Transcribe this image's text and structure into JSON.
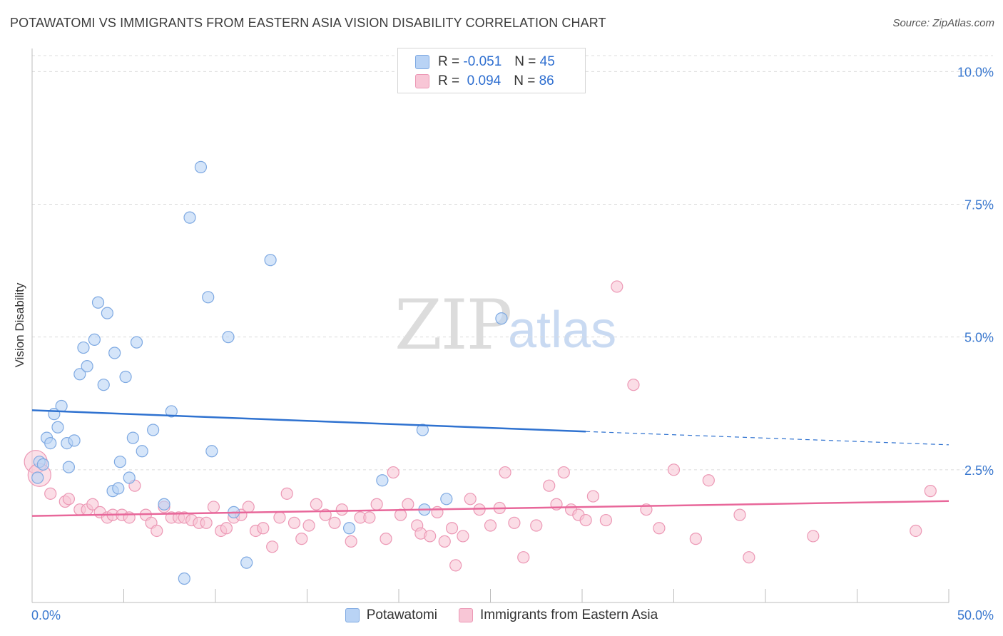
{
  "title": "POTAWATOMI VS IMMIGRANTS FROM EASTERN ASIA VISION DISABILITY CORRELATION CHART",
  "source": "Source: ZipAtlas.com",
  "watermark": {
    "zip": "ZIP",
    "atlas": "atlas"
  },
  "legend": {
    "r_label": "R =",
    "n_label": "N =",
    "rows": [
      {
        "r": "-0.051",
        "n": "45"
      },
      {
        "r": "0.094",
        "n": "86"
      }
    ]
  },
  "colors": {
    "blue_fill": "#b9d3f5",
    "blue_stroke": "#7ea9e2",
    "blue_line": "#2f72d0",
    "pink_fill": "#f8c6d6",
    "pink_stroke": "#ec98b5",
    "pink_line": "#e8679a",
    "tick_label": "#3a78cf",
    "grid": "#dcdcdc"
  },
  "chart_data": {
    "type": "scatter",
    "title": "POTAWATOMI VS IMMIGRANTS FROM EASTERN ASIA VISION DISABILITY CORRELATION CHART",
    "xlabel": "",
    "ylabel": "Vision Disability",
    "xlim": [
      0,
      50
    ],
    "ylim": [
      0,
      10.3
    ],
    "x_tick_labels": [
      "0.0%",
      "50.0%"
    ],
    "y_ticks": [
      2.5,
      5.0,
      7.5,
      10.0
    ],
    "y_tick_labels": [
      "2.5%",
      "5.0%",
      "7.5%",
      "10.0%"
    ],
    "grid": "horizontal dashed",
    "legend_placement": "top-center and bottom",
    "series": [
      {
        "name": "Potawatomi",
        "color": "#b9d3f5",
        "points": [
          [
            0.3,
            2.35
          ],
          [
            0.4,
            2.65
          ],
          [
            0.6,
            2.6
          ],
          [
            0.8,
            3.1
          ],
          [
            1.0,
            3.0
          ],
          [
            1.2,
            3.55
          ],
          [
            1.4,
            3.3
          ],
          [
            1.6,
            3.7
          ],
          [
            1.9,
            3.0
          ],
          [
            2.0,
            2.55
          ],
          [
            2.3,
            3.05
          ],
          [
            2.6,
            4.3
          ],
          [
            2.8,
            4.8
          ],
          [
            3.0,
            4.45
          ],
          [
            3.4,
            4.95
          ],
          [
            3.6,
            5.65
          ],
          [
            3.9,
            4.1
          ],
          [
            4.1,
            5.45
          ],
          [
            4.4,
            2.1
          ],
          [
            4.5,
            4.7
          ],
          [
            4.7,
            2.15
          ],
          [
            4.8,
            2.65
          ],
          [
            5.1,
            4.25
          ],
          [
            5.3,
            2.35
          ],
          [
            5.5,
            3.1
          ],
          [
            5.7,
            4.9
          ],
          [
            6.0,
            2.85
          ],
          [
            6.6,
            3.25
          ],
          [
            7.2,
            1.85
          ],
          [
            7.6,
            3.6
          ],
          [
            8.3,
            0.45
          ],
          [
            8.6,
            7.25
          ],
          [
            9.2,
            8.2
          ],
          [
            9.6,
            5.75
          ],
          [
            9.8,
            2.85
          ],
          [
            10.7,
            5.0
          ],
          [
            11.0,
            1.7
          ],
          [
            11.7,
            0.75
          ],
          [
            13.0,
            6.45
          ],
          [
            17.3,
            1.4
          ],
          [
            19.1,
            2.3
          ],
          [
            21.3,
            3.25
          ],
          [
            21.4,
            1.75
          ],
          [
            22.6,
            1.95
          ],
          [
            25.6,
            5.35
          ]
        ]
      },
      {
        "name": "Immigrants from Eastern Asia",
        "color": "#f8c6d6",
        "points": [
          [
            0.2,
            2.65
          ],
          [
            0.4,
            2.4
          ],
          [
            1.0,
            2.05
          ],
          [
            1.8,
            1.9
          ],
          [
            2.0,
            1.95
          ],
          [
            2.6,
            1.75
          ],
          [
            3.0,
            1.75
          ],
          [
            3.3,
            1.85
          ],
          [
            3.7,
            1.7
          ],
          [
            4.1,
            1.6
          ],
          [
            4.4,
            1.65
          ],
          [
            4.9,
            1.65
          ],
          [
            5.3,
            1.6
          ],
          [
            5.6,
            2.2
          ],
          [
            6.2,
            1.65
          ],
          [
            6.5,
            1.5
          ],
          [
            6.8,
            1.35
          ],
          [
            7.2,
            1.8
          ],
          [
            7.6,
            1.6
          ],
          [
            8.0,
            1.6
          ],
          [
            8.3,
            1.6
          ],
          [
            8.7,
            1.55
          ],
          [
            9.1,
            1.5
          ],
          [
            9.5,
            1.5
          ],
          [
            9.9,
            1.8
          ],
          [
            10.3,
            1.35
          ],
          [
            10.6,
            1.4
          ],
          [
            11.0,
            1.6
          ],
          [
            11.4,
            1.65
          ],
          [
            11.8,
            1.8
          ],
          [
            12.2,
            1.35
          ],
          [
            12.6,
            1.4
          ],
          [
            13.1,
            1.05
          ],
          [
            13.5,
            1.6
          ],
          [
            13.9,
            2.05
          ],
          [
            14.3,
            1.5
          ],
          [
            14.7,
            1.2
          ],
          [
            15.1,
            1.45
          ],
          [
            15.5,
            1.85
          ],
          [
            16.0,
            1.65
          ],
          [
            16.5,
            1.5
          ],
          [
            16.9,
            1.75
          ],
          [
            17.4,
            1.15
          ],
          [
            17.9,
            1.6
          ],
          [
            18.4,
            1.6
          ],
          [
            18.8,
            1.85
          ],
          [
            19.3,
            1.2
          ],
          [
            19.7,
            2.45
          ],
          [
            20.1,
            1.65
          ],
          [
            20.5,
            1.85
          ],
          [
            21.0,
            1.45
          ],
          [
            21.2,
            1.3
          ],
          [
            21.7,
            1.25
          ],
          [
            22.1,
            1.7
          ],
          [
            22.5,
            1.15
          ],
          [
            22.9,
            1.4
          ],
          [
            23.1,
            0.7
          ],
          [
            23.5,
            1.25
          ],
          [
            23.9,
            1.95
          ],
          [
            24.4,
            1.75
          ],
          [
            25.0,
            1.45
          ],
          [
            25.5,
            1.78
          ],
          [
            25.8,
            2.45
          ],
          [
            26.3,
            1.5
          ],
          [
            26.8,
            0.85
          ],
          [
            27.5,
            1.45
          ],
          [
            28.2,
            2.2
          ],
          [
            28.6,
            1.85
          ],
          [
            29.0,
            2.45
          ],
          [
            29.4,
            1.75
          ],
          [
            29.8,
            1.65
          ],
          [
            30.2,
            1.55
          ],
          [
            30.6,
            2.0
          ],
          [
            31.3,
            1.55
          ],
          [
            31.9,
            5.95
          ],
          [
            32.8,
            4.1
          ],
          [
            33.5,
            1.75
          ],
          [
            34.2,
            1.4
          ],
          [
            35.0,
            2.5
          ],
          [
            36.2,
            1.2
          ],
          [
            36.9,
            2.3
          ],
          [
            38.6,
            1.65
          ],
          [
            39.1,
            0.85
          ],
          [
            42.6,
            1.25
          ],
          [
            48.2,
            1.35
          ],
          [
            49.0,
            2.1
          ]
        ]
      }
    ],
    "trend_lines": [
      {
        "name": "Potawatomi",
        "x": [
          0,
          30.2
        ],
        "y": [
          3.62,
          3.22
        ],
        "dashed_extension_to": [
          50,
          2.97
        ]
      },
      {
        "name": "Immigrants from Eastern Asia",
        "x": [
          0,
          50
        ],
        "y": [
          1.63,
          1.91
        ]
      }
    ]
  },
  "bottom_legend": {
    "items": [
      {
        "label": "Potawatomi"
      },
      {
        "label": "Immigrants from Eastern Asia"
      }
    ]
  }
}
